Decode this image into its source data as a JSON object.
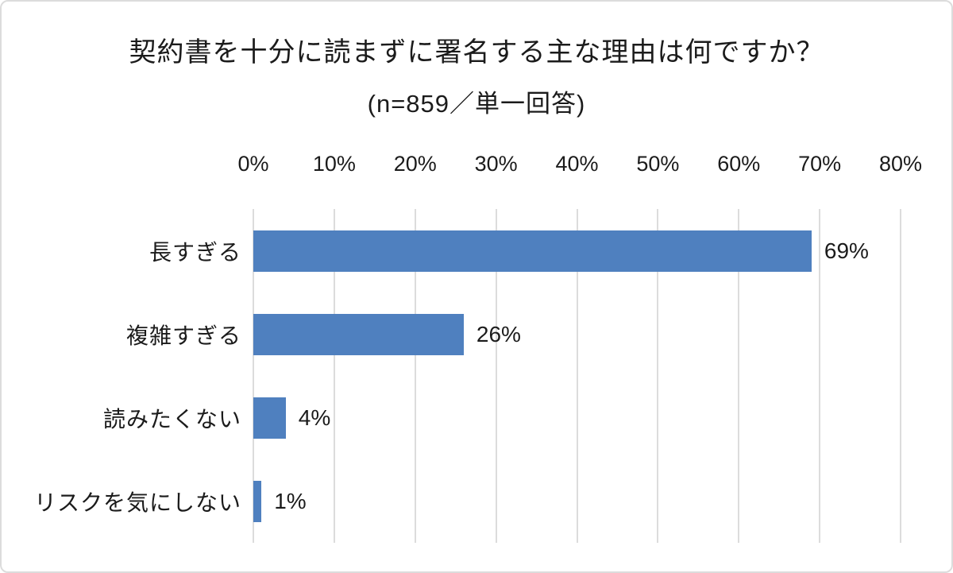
{
  "chart_data": {
    "type": "bar",
    "orientation": "horizontal",
    "title": "契約書を十分に読まずに署名する主な理由は何ですか？",
    "subtitle": "(n=859／単一回答)",
    "categories": [
      "長すぎる",
      "複雑すぎる",
      "読みたくない",
      "リスクを気にしない"
    ],
    "values": [
      69,
      26,
      4,
      1
    ],
    "value_labels": [
      "69%",
      "26%",
      "4%",
      "1%"
    ],
    "x_ticks": [
      "0%",
      "10%",
      "20%",
      "30%",
      "40%",
      "50%",
      "60%",
      "70%",
      "80%"
    ],
    "xlim": [
      0,
      80
    ],
    "axis_position": "top",
    "grid": "vertical-only",
    "legend": "none",
    "colors": {
      "bar": "#4f80bf",
      "gridline": "#dcdcdc",
      "text": "#1b1b1b",
      "frame_border": "#dcdcdc",
      "background": "#ffffff"
    }
  }
}
